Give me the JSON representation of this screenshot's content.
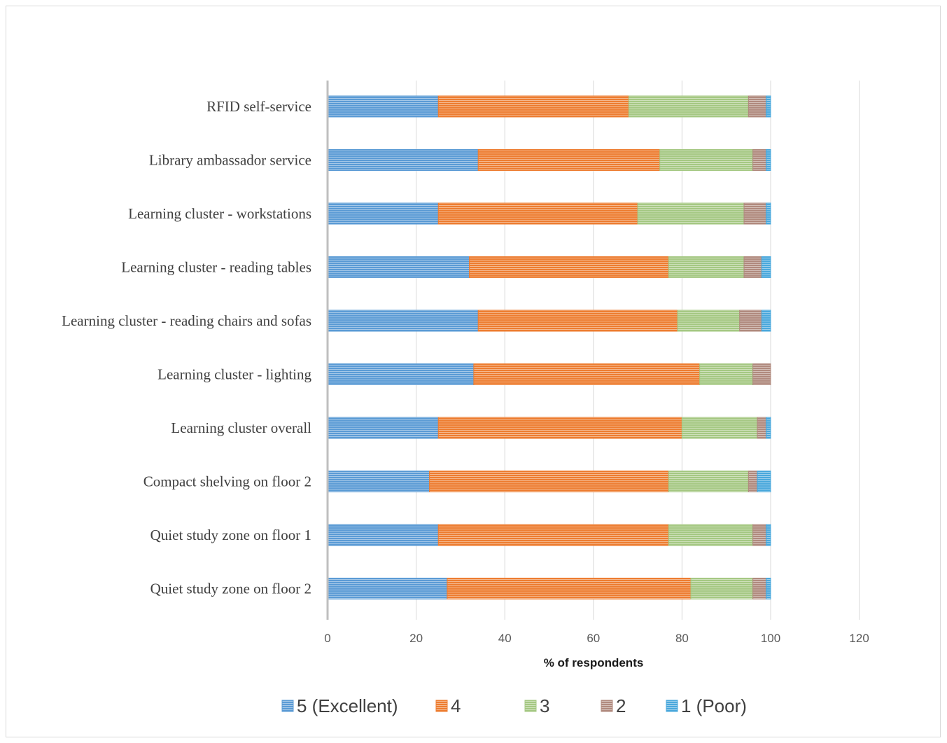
{
  "chart_data": {
    "type": "bar",
    "orientation": "horizontal",
    "stacked": true,
    "title": "",
    "xlabel": "% of respondents",
    "ylabel": "",
    "xlim": [
      0,
      120
    ],
    "x_ticks": [
      "0",
      "20",
      "40",
      "60",
      "80",
      "100",
      "120"
    ],
    "grid": "vertical",
    "legend_position": "bottom",
    "categories": [
      "RFID self-service",
      "Library ambassador service",
      "Learning cluster - workstations",
      "Learning cluster - reading tables",
      "Learning cluster - reading chairs and sofas",
      "Learning cluster - lighting",
      "Learning cluster overall",
      "Compact shelving on floor 2",
      "Quiet study zone on floor 1",
      "Quiet study zone on floor 2"
    ],
    "series": [
      {
        "name": "5 (Excellent)",
        "color": "#5b9bd5",
        "values": [
          25,
          34,
          25,
          32,
          34,
          33,
          25,
          23,
          25,
          27
        ]
      },
      {
        "name": "4",
        "color": "#ed7d31",
        "values": [
          43,
          41,
          45,
          45,
          45,
          51,
          55,
          54,
          52,
          55
        ]
      },
      {
        "name": "3",
        "color": "#a5c883",
        "values": [
          27,
          21,
          24,
          17,
          14,
          12,
          17,
          18,
          19,
          14
        ]
      },
      {
        "name": "2",
        "color": "#b08a7e",
        "values": [
          4,
          3,
          5,
          4,
          5,
          4,
          2,
          2,
          3,
          3
        ]
      },
      {
        "name": "1 (Poor)",
        "color": "#4aa8dc",
        "values": [
          1,
          1,
          1,
          2,
          2,
          0,
          1,
          3,
          1,
          1
        ]
      }
    ]
  }
}
